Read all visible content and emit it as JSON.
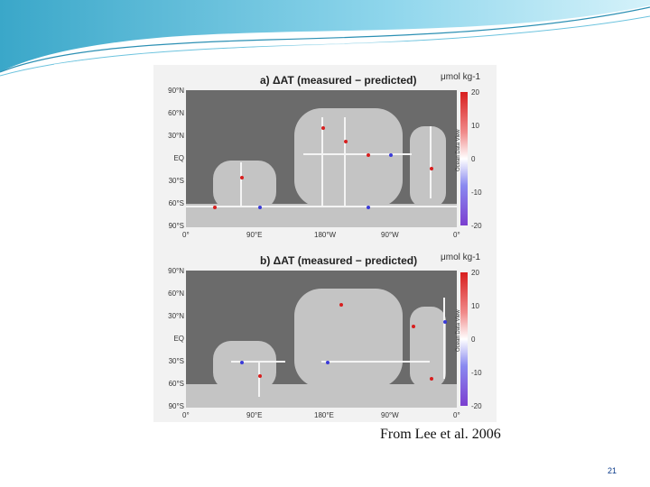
{
  "figure": {
    "panel_a": {
      "title": "a) ΔAT (measured − predicted)",
      "unit": "μmol kg-1",
      "colorbar_ticks": [
        "20",
        "10",
        "0",
        "-10",
        "-20"
      ],
      "colorbar_caption": "Ocean Data View"
    },
    "panel_b": {
      "title": "b) ΔAT (measured − predicted)",
      "unit": "μmol kg-1",
      "colorbar_ticks": [
        "20",
        "10",
        "0",
        "-10",
        "-20"
      ],
      "colorbar_caption": "Ocean Data View"
    },
    "lat_labels": [
      "90°N",
      "60°N",
      "30°N",
      "EQ",
      "30°S",
      "60°S",
      "90°S"
    ],
    "lon_labels_a": [
      "0°",
      "90°E",
      "180°W",
      "90°W",
      "0°"
    ],
    "lon_labels_b": [
      "0°",
      "90°E",
      "180°E",
      "90°W",
      "0°"
    ]
  },
  "caption": "From Lee et al. 2006",
  "page_number": "21",
  "colors": {
    "positive": "#d81e1e",
    "negative": "#3a3ad8",
    "track": "#f4f4f4",
    "land": "#6b6b6b",
    "ocean": "#c4c4c4"
  }
}
